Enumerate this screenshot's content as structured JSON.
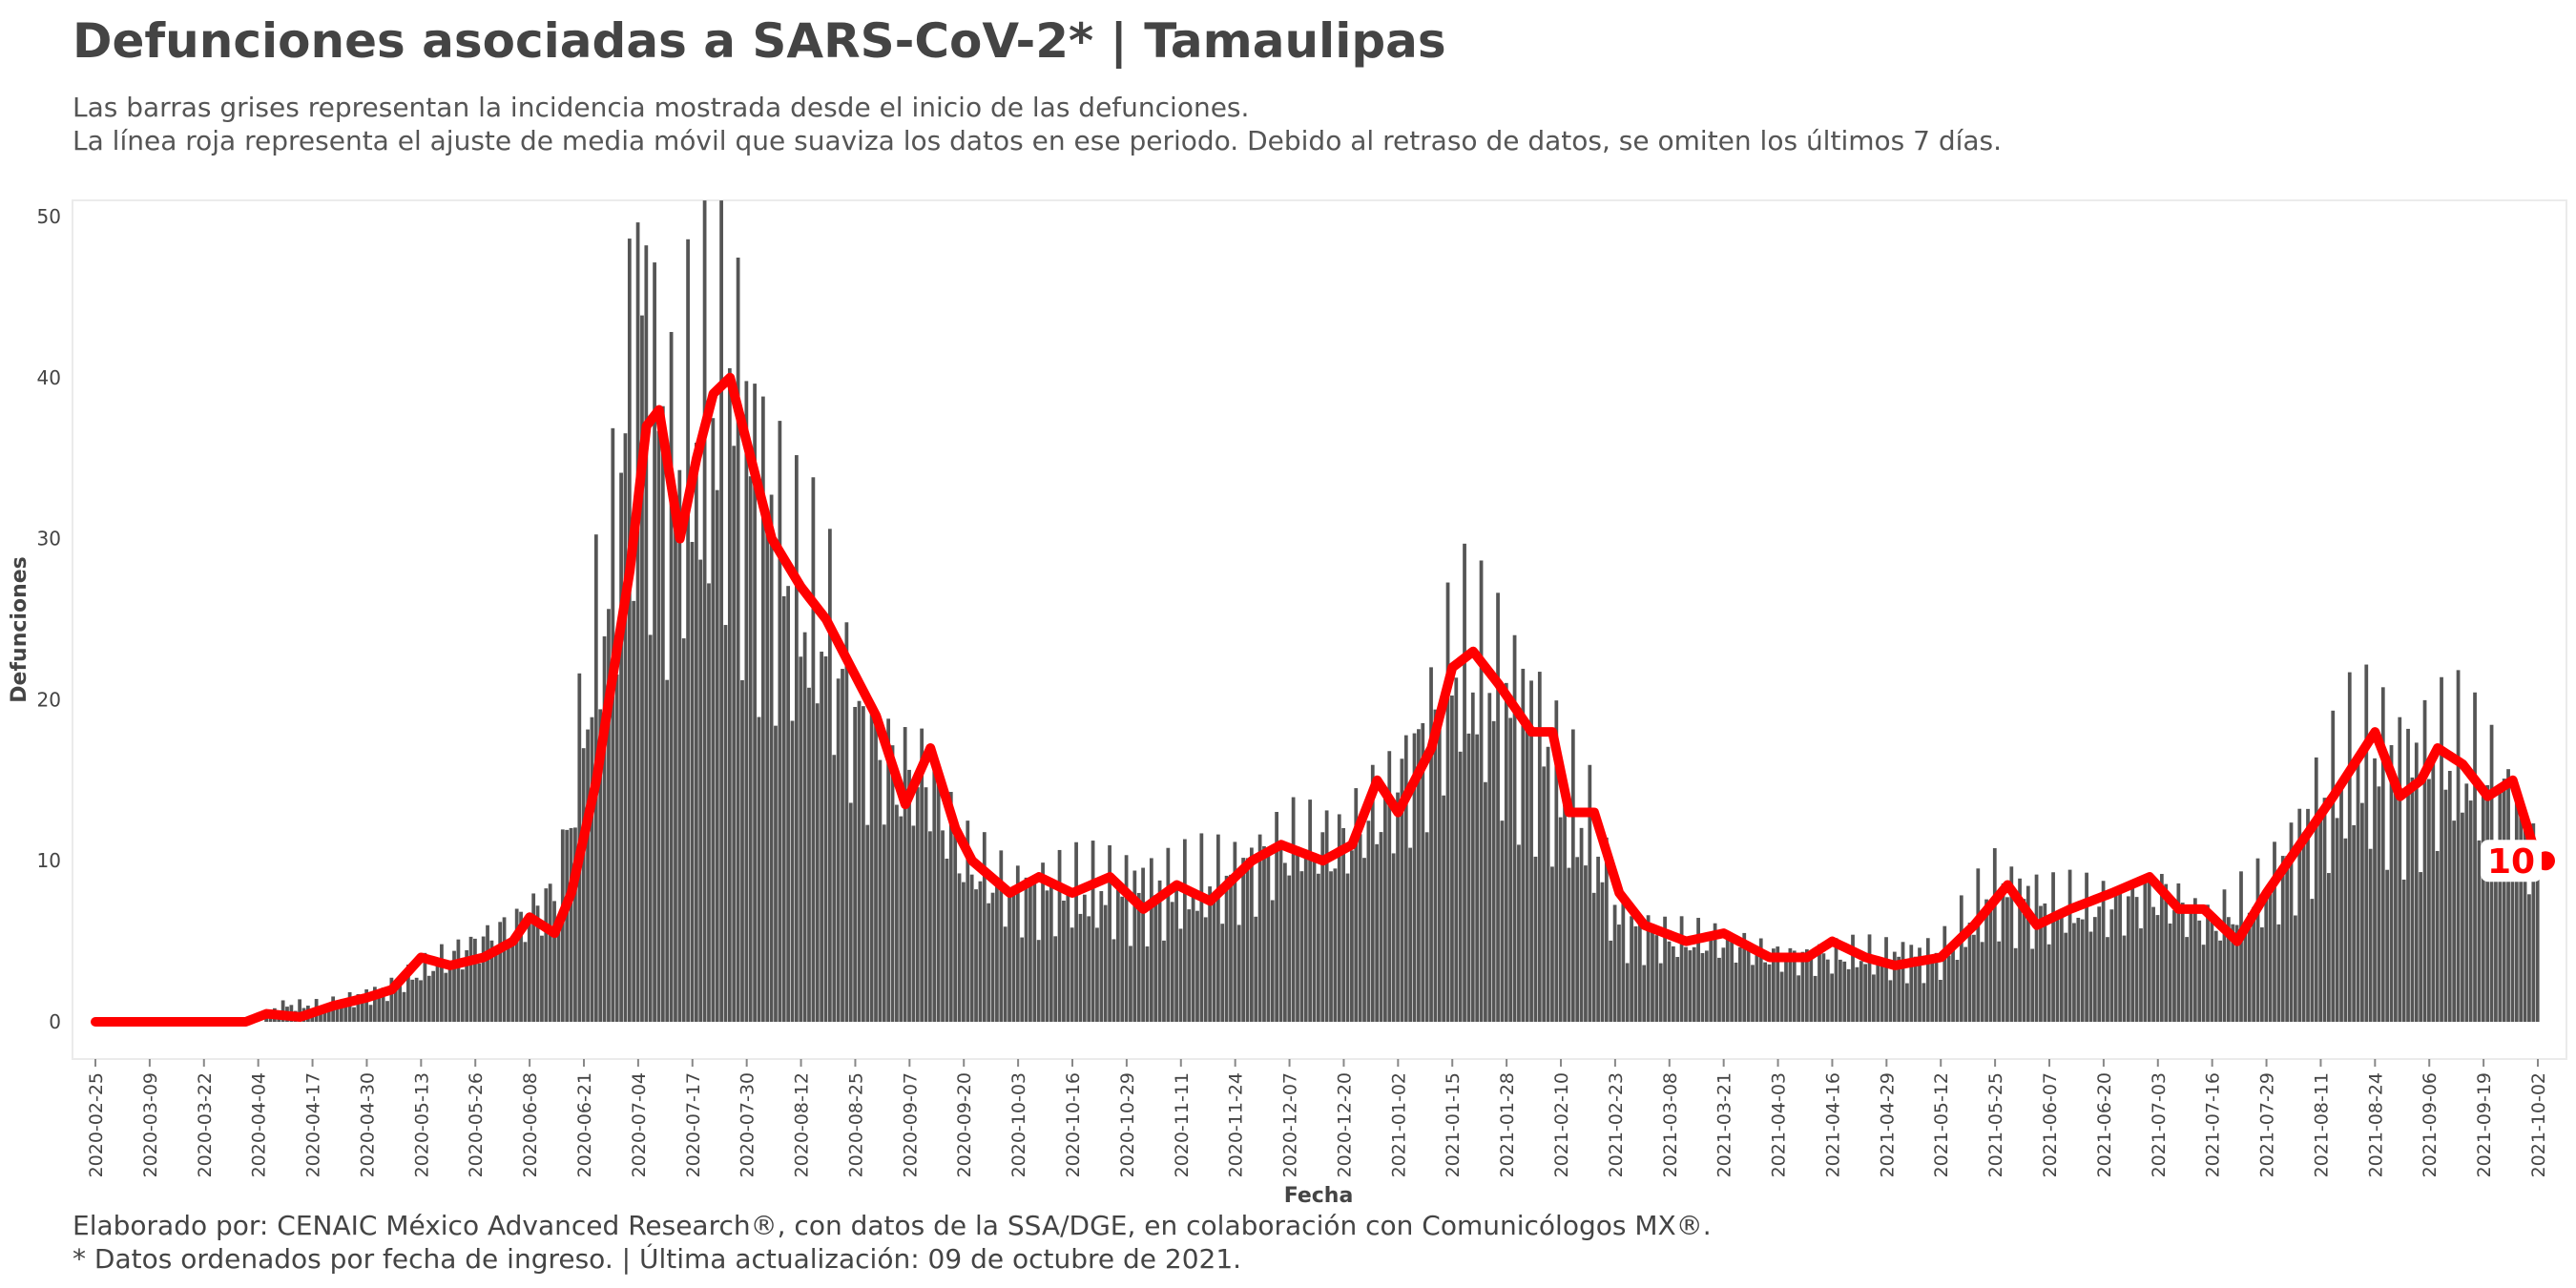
{
  "title": "Defunciones asociadas a SARS-CoV-2* | Tamaulipas",
  "subtitle_1": "Las barras grises representan la incidencia mostrada desde el inicio de las defunciones.",
  "subtitle_2": "La línea roja representa el ajuste de media móvil que suaviza los datos en ese periodo. Debido al retraso de datos, se omiten los últimos 7 días.",
  "caption_1": "Elaborado por: CENAIC México Advanced Research®, con datos de la SSA/DGE, en colaboración con Comunicólogos MX®.",
  "caption_2": "* Datos ordenados por fecha de ingreso. | Última actualización: 09 de octubre de 2021.",
  "colors": {
    "bars": "#555555",
    "line": "#ff0000",
    "text": "#444444"
  },
  "chart_data": {
    "type": "bar",
    "xlabel": "Fecha",
    "ylabel": "Defunciones",
    "ylim": [
      0,
      50
    ],
    "yticks": [
      0,
      10,
      20,
      30,
      40,
      50
    ],
    "x_start": "2020-02-25",
    "x_end": "2021-10-02",
    "xticks": [
      "2020-02-25",
      "2020-03-09",
      "2020-03-22",
      "2020-04-04",
      "2020-04-17",
      "2020-04-30",
      "2020-05-13",
      "2020-05-26",
      "2020-06-08",
      "2020-06-21",
      "2020-07-04",
      "2020-07-17",
      "2020-07-30",
      "2020-08-12",
      "2020-08-25",
      "2020-09-07",
      "2020-09-20",
      "2020-10-03",
      "2020-10-16",
      "2020-10-29",
      "2020-11-11",
      "2020-11-24",
      "2020-12-07",
      "2020-12-20",
      "2021-01-02",
      "2021-01-15",
      "2021-01-28",
      "2021-02-10",
      "2021-02-23",
      "2021-03-08",
      "2021-03-21",
      "2021-04-03",
      "2021-04-16",
      "2021-04-29",
      "2021-05-12",
      "2021-05-25",
      "2021-06-07",
      "2021-06-20",
      "2021-07-03",
      "2021-07-16",
      "2021-07-29",
      "2021-08-11",
      "2021-08-24",
      "2021-09-06",
      "2021-09-19",
      "2021-10-02"
    ],
    "series": [
      {
        "type": "bar",
        "anchors": [
          [
            "2020-02-25",
            0
          ],
          [
            "2020-04-02",
            0
          ],
          [
            "2020-04-10",
            1
          ],
          [
            "2020-04-20",
            1
          ],
          [
            "2020-05-05",
            2
          ],
          [
            "2020-05-20",
            4
          ],
          [
            "2020-06-05",
            6
          ],
          [
            "2020-06-15",
            8
          ],
          [
            "2020-06-22",
            20
          ],
          [
            "2020-06-28",
            28
          ],
          [
            "2020-07-04",
            44
          ],
          [
            "2020-07-08",
            38
          ],
          [
            "2020-07-12",
            32
          ],
          [
            "2020-07-18",
            36
          ],
          [
            "2020-07-26",
            38
          ],
          [
            "2020-08-02",
            32
          ],
          [
            "2020-08-10",
            26
          ],
          [
            "2020-08-18",
            24
          ],
          [
            "2020-08-26",
            18
          ],
          [
            "2020-09-05",
            15
          ],
          [
            "2020-09-12",
            15
          ],
          [
            "2020-09-20",
            10
          ],
          [
            "2020-10-01",
            8
          ],
          [
            "2020-10-15",
            8
          ],
          [
            "2020-10-29",
            8
          ],
          [
            "2020-11-10",
            8
          ],
          [
            "2020-11-24",
            9
          ],
          [
            "2020-12-07",
            11
          ],
          [
            "2020-12-20",
            11
          ],
          [
            "2021-01-01",
            14
          ],
          [
            "2021-01-10",
            18
          ],
          [
            "2021-01-16",
            22
          ],
          [
            "2021-01-25",
            20
          ],
          [
            "2021-02-03",
            18
          ],
          [
            "2021-02-10",
            14
          ],
          [
            "2021-02-18",
            11
          ],
          [
            "2021-02-24",
            6
          ],
          [
            "2021-03-08",
            5
          ],
          [
            "2021-03-21",
            5
          ],
          [
            "2021-04-03",
            4
          ],
          [
            "2021-04-16",
            4
          ],
          [
            "2021-04-29",
            4
          ],
          [
            "2021-05-12",
            4
          ],
          [
            "2021-05-25",
            8
          ],
          [
            "2021-06-07",
            7
          ],
          [
            "2021-06-20",
            7
          ],
          [
            "2021-07-03",
            8
          ],
          [
            "2021-07-16",
            6
          ],
          [
            "2021-07-29",
            8
          ],
          [
            "2021-08-11",
            13
          ],
          [
            "2021-08-20",
            16
          ],
          [
            "2021-09-01",
            15
          ],
          [
            "2021-09-12",
            16
          ],
          [
            "2021-09-24",
            14
          ],
          [
            "2021-10-02",
            10
          ]
        ]
      },
      {
        "type": "line",
        "anchors": [
          [
            "2020-02-25",
            0
          ],
          [
            "2020-04-01",
            0
          ],
          [
            "2020-04-06",
            0.5
          ],
          [
            "2020-04-14",
            0.3
          ],
          [
            "2020-04-22",
            1
          ],
          [
            "2020-04-30",
            1.5
          ],
          [
            "2020-05-06",
            2
          ],
          [
            "2020-05-13",
            4
          ],
          [
            "2020-05-20",
            3.5
          ],
          [
            "2020-05-28",
            4
          ],
          [
            "2020-06-04",
            5
          ],
          [
            "2020-06-08",
            6.5
          ],
          [
            "2020-06-14",
            5.5
          ],
          [
            "2020-06-18",
            8
          ],
          [
            "2020-06-24",
            15
          ],
          [
            "2020-06-27",
            20
          ],
          [
            "2020-07-02",
            28
          ],
          [
            "2020-07-06",
            37
          ],
          [
            "2020-07-09",
            38
          ],
          [
            "2020-07-14",
            30
          ],
          [
            "2020-07-18",
            35
          ],
          [
            "2020-07-22",
            39
          ],
          [
            "2020-07-26",
            40
          ],
          [
            "2020-07-30",
            36
          ],
          [
            "2020-08-05",
            30
          ],
          [
            "2020-08-12",
            27
          ],
          [
            "2020-08-18",
            25
          ],
          [
            "2020-08-24",
            22
          ],
          [
            "2020-08-30",
            19
          ],
          [
            "2020-09-06",
            13.5
          ],
          [
            "2020-09-12",
            17
          ],
          [
            "2020-09-18",
            12
          ],
          [
            "2020-09-22",
            10
          ],
          [
            "2020-10-01",
            8
          ],
          [
            "2020-10-08",
            9
          ],
          [
            "2020-10-16",
            8
          ],
          [
            "2020-10-25",
            9
          ],
          [
            "2020-11-02",
            7
          ],
          [
            "2020-11-10",
            8.5
          ],
          [
            "2020-11-18",
            7.5
          ],
          [
            "2020-11-28",
            10
          ],
          [
            "2020-12-05",
            11
          ],
          [
            "2020-12-15",
            10
          ],
          [
            "2020-12-22",
            11
          ],
          [
            "2020-12-28",
            15
          ],
          [
            "2021-01-02",
            13
          ],
          [
            "2021-01-10",
            17
          ],
          [
            "2021-01-15",
            22
          ],
          [
            "2021-01-20",
            23
          ],
          [
            "2021-01-26",
            21
          ],
          [
            "2021-02-03",
            18
          ],
          [
            "2021-02-08",
            18
          ],
          [
            "2021-02-12",
            13
          ],
          [
            "2021-02-18",
            13
          ],
          [
            "2021-02-24",
            8
          ],
          [
            "2021-03-02",
            6
          ],
          [
            "2021-03-12",
            5
          ],
          [
            "2021-03-21",
            5.5
          ],
          [
            "2021-04-01",
            4
          ],
          [
            "2021-04-10",
            4
          ],
          [
            "2021-04-16",
            5
          ],
          [
            "2021-04-24",
            4
          ],
          [
            "2021-05-01",
            3.5
          ],
          [
            "2021-05-12",
            4
          ],
          [
            "2021-05-20",
            6
          ],
          [
            "2021-05-28",
            8.5
          ],
          [
            "2021-06-04",
            6
          ],
          [
            "2021-06-12",
            7
          ],
          [
            "2021-06-22",
            8
          ],
          [
            "2021-07-01",
            9
          ],
          [
            "2021-07-08",
            7
          ],
          [
            "2021-07-14",
            7
          ],
          [
            "2021-07-22",
            5
          ],
          [
            "2021-07-29",
            8
          ],
          [
            "2021-08-06",
            11
          ],
          [
            "2021-08-14",
            14
          ],
          [
            "2021-08-19",
            16
          ],
          [
            "2021-08-24",
            18
          ],
          [
            "2021-08-30",
            14
          ],
          [
            "2021-09-04",
            15
          ],
          [
            "2021-09-08",
            17
          ],
          [
            "2021-09-14",
            16
          ],
          [
            "2021-09-20",
            14
          ],
          [
            "2021-09-26",
            15
          ],
          [
            "2021-10-02",
            10
          ]
        ]
      }
    ],
    "end_label": "10"
  }
}
